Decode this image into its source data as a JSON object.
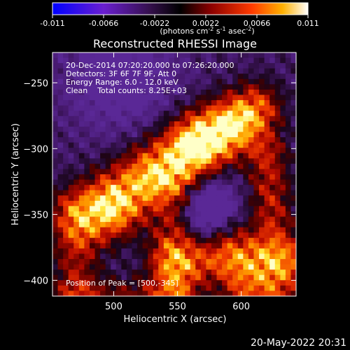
{
  "colorbar": {
    "ticks": [
      "-0.011",
      "-0.0066",
      "-0.0022",
      "0.0022",
      "0.0066",
      "0.011"
    ],
    "tick_values": [
      -0.011,
      -0.0066,
      -0.0022,
      0.0022,
      0.0066,
      0.011
    ],
    "units": {
      "a": "(photons cm",
      "b": "-2",
      "c": " s",
      "d": "-1",
      "e": " asec",
      "f": "-2",
      "g": ")"
    },
    "colors": [
      "#0000ff",
      "#7a1fc8",
      "#3b0f55",
      "#000000",
      "#8b0000",
      "#ff3a00",
      "#ffb000",
      "#ffffff"
    ]
  },
  "chart_data": {
    "type": "heatmap",
    "title": "Reconstructed RHESSI Image",
    "xlabel": "Heliocentric X (arcsec)",
    "ylabel": "Heliocentric Y (arcsec)",
    "xlim": [
      452,
      643
    ],
    "ylim": [
      -412,
      -227
    ],
    "xticks": [
      500,
      550,
      600
    ],
    "yticks": [
      -250,
      -300,
      -350,
      -400
    ],
    "annotations": [
      "20-Dec-2014 07:20:20.000 to 07:26:20.000",
      "Detectors: 3F 6F 7F 9F, Att 0",
      "Energy Range: 6.0 - 12.0 keV",
      "Clean    Total counts: 8.25E+03"
    ],
    "peak_label": "Position of Peak = [500,-345]",
    "peak": [
      500,
      -345
    ],
    "sources": [
      {
        "x": 500,
        "y": -345,
        "intensity": 1.0
      },
      {
        "x": 560,
        "y": -300,
        "intensity": 0.95
      },
      {
        "x": 600,
        "y": -280,
        "intensity": 0.85
      },
      {
        "x": 605,
        "y": -408,
        "intensity": 0.9
      },
      {
        "x": 530,
        "y": -320,
        "intensity": 0.6
      },
      {
        "x": 595,
        "y": -375,
        "intensity": 0.55
      }
    ]
  },
  "footer": {
    "timestamp": "20-May-2022 20:31"
  }
}
